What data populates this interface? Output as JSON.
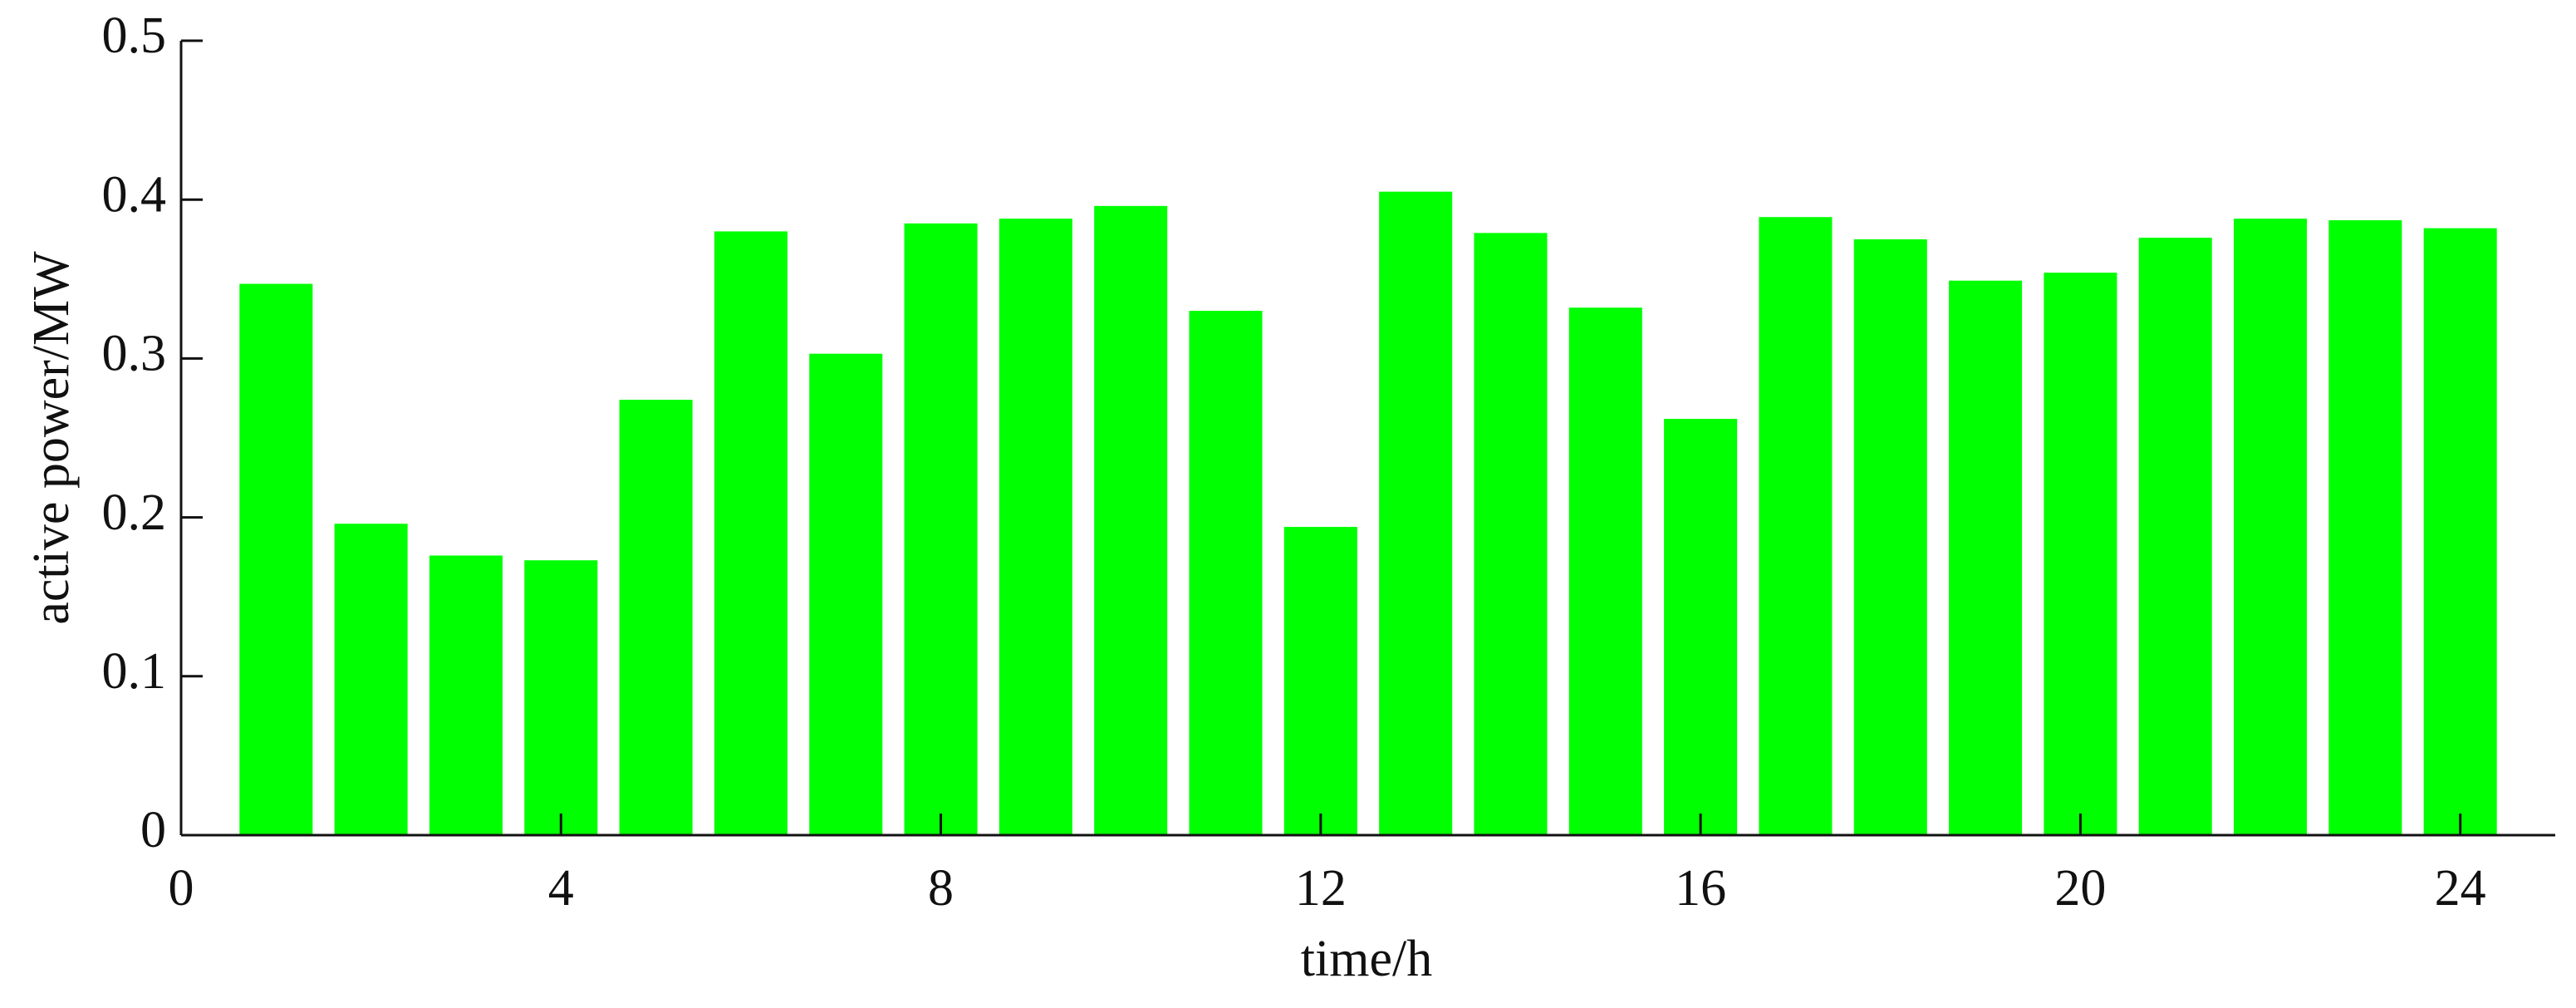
{
  "chart_data": {
    "type": "bar",
    "x": [
      1,
      2,
      3,
      4,
      5,
      6,
      7,
      8,
      9,
      10,
      11,
      12,
      13,
      14,
      15,
      16,
      17,
      18,
      19,
      20,
      21,
      22,
      23,
      24
    ],
    "values": [
      0.347,
      0.196,
      0.176,
      0.173,
      0.274,
      0.38,
      0.303,
      0.385,
      0.388,
      0.396,
      0.33,
      0.194,
      0.405,
      0.379,
      0.332,
      0.262,
      0.389,
      0.375,
      0.349,
      0.354,
      0.376,
      0.388,
      0.387,
      0.382
    ],
    "color": "#00ff00",
    "xlabel": "time/h",
    "ylabel": "active power/MW",
    "xlim": [
      0,
      25
    ],
    "xticks": [
      0,
      4,
      8,
      12,
      16,
      20,
      24
    ],
    "ylim": [
      0,
      0.5
    ],
    "yticks": [
      0,
      0.1,
      0.2,
      0.3,
      0.4,
      0.5
    ]
  }
}
